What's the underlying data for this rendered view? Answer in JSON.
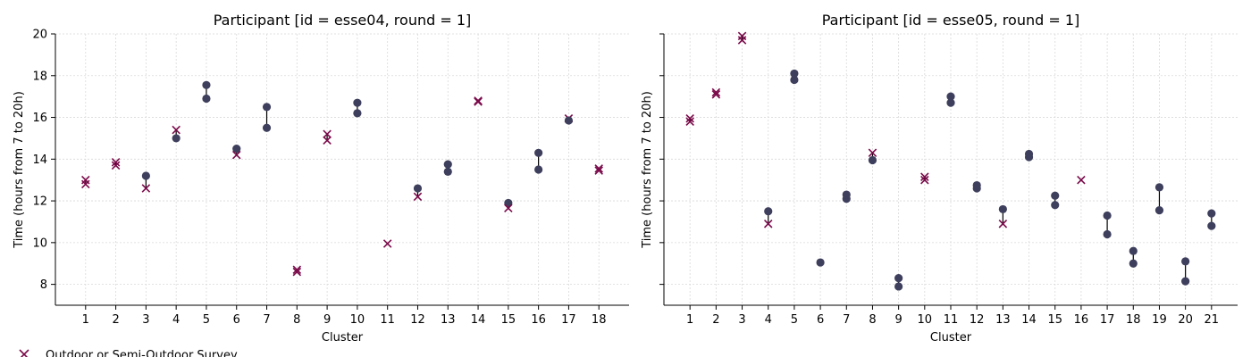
{
  "colors": {
    "survey_marker": "#7a0a4a",
    "measured_marker": "#3d3f5c",
    "connector": "#000000",
    "grid": "#d9d9d9",
    "axis": "#000000"
  },
  "legend": {
    "items": [
      {
        "marker": "x",
        "label": "Outdoor or Semi-Outdoor Survey"
      }
    ]
  },
  "chart_data": [
    {
      "type": "scatter",
      "title": "Participant [id = esse04, round = 1]",
      "xlabel": "Cluster",
      "ylabel": "Time (hours from 7 to 20h)",
      "ylim": [
        7,
        20
      ],
      "yticks": [
        8,
        10,
        12,
        14,
        16,
        18,
        20
      ],
      "categories": [
        "1",
        "2",
        "3",
        "4",
        "5",
        "6",
        "7",
        "8",
        "9",
        "10",
        "11",
        "12",
        "13",
        "14",
        "15",
        "16",
        "17",
        "18"
      ],
      "grid": true,
      "points": [
        {
          "cluster": "1",
          "marker": "x",
          "values": [
            12.8,
            13.0
          ]
        },
        {
          "cluster": "2",
          "marker": "x",
          "values": [
            13.7,
            13.85
          ]
        },
        {
          "cluster": "3",
          "marker": "dot",
          "values": [
            13.2
          ]
        },
        {
          "cluster": "3",
          "marker": "x",
          "values": [
            12.6
          ]
        },
        {
          "cluster": "4",
          "marker": "x",
          "values": [
            15.4
          ]
        },
        {
          "cluster": "4",
          "marker": "dot",
          "values": [
            15.0
          ]
        },
        {
          "cluster": "5",
          "marker": "dot",
          "values": [
            16.9,
            17.55
          ]
        },
        {
          "cluster": "6",
          "marker": "dot",
          "values": [
            14.5
          ]
        },
        {
          "cluster": "6",
          "marker": "x",
          "values": [
            14.2
          ]
        },
        {
          "cluster": "7",
          "marker": "dot",
          "values": [
            15.5,
            16.5
          ]
        },
        {
          "cluster": "8",
          "marker": "x",
          "values": [
            8.6,
            8.7
          ]
        },
        {
          "cluster": "9",
          "marker": "x",
          "values": [
            14.9,
            15.2
          ]
        },
        {
          "cluster": "10",
          "marker": "dot",
          "values": [
            16.2,
            16.7
          ]
        },
        {
          "cluster": "11",
          "marker": "x",
          "values": [
            9.95
          ]
        },
        {
          "cluster": "12",
          "marker": "dot",
          "values": [
            12.6
          ]
        },
        {
          "cluster": "12",
          "marker": "x",
          "values": [
            12.2
          ]
        },
        {
          "cluster": "13",
          "marker": "dot",
          "values": [
            13.4,
            13.75
          ]
        },
        {
          "cluster": "14",
          "marker": "x",
          "values": [
            16.75,
            16.8
          ]
        },
        {
          "cluster": "15",
          "marker": "dot",
          "values": [
            11.9
          ]
        },
        {
          "cluster": "15",
          "marker": "x",
          "values": [
            11.65
          ]
        },
        {
          "cluster": "16",
          "marker": "dot",
          "values": [
            13.5,
            14.3
          ]
        },
        {
          "cluster": "17",
          "marker": "x",
          "values": [
            15.95
          ]
        },
        {
          "cluster": "17",
          "marker": "dot",
          "values": [
            15.85
          ]
        },
        {
          "cluster": "18",
          "marker": "x",
          "values": [
            13.45,
            13.55
          ]
        }
      ]
    },
    {
      "type": "scatter",
      "title": "Participant [id = esse05, round = 1]",
      "xlabel": "Cluster",
      "ylabel": "Time (hours from 7 to 20h)",
      "ylim": [
        7,
        20
      ],
      "yticks": [
        8,
        10,
        12,
        14,
        16,
        18,
        20
      ],
      "categories": [
        "1",
        "2",
        "3",
        "4",
        "5",
        "6",
        "7",
        "8",
        "9",
        "10",
        "11",
        "12",
        "13",
        "14",
        "15",
        "16",
        "17",
        "18",
        "19",
        "20",
        "21"
      ],
      "grid": true,
      "points": [
        {
          "cluster": "1",
          "marker": "x",
          "values": [
            15.8,
            15.95
          ]
        },
        {
          "cluster": "2",
          "marker": "x",
          "values": [
            17.1,
            17.2
          ]
        },
        {
          "cluster": "3",
          "marker": "x",
          "values": [
            19.7,
            19.9
          ]
        },
        {
          "cluster": "4",
          "marker": "dot",
          "values": [
            11.5
          ]
        },
        {
          "cluster": "4",
          "marker": "x",
          "values": [
            10.9
          ]
        },
        {
          "cluster": "5",
          "marker": "dot",
          "values": [
            17.8,
            18.1
          ]
        },
        {
          "cluster": "6",
          "marker": "dot",
          "values": [
            9.05
          ]
        },
        {
          "cluster": "7",
          "marker": "dot",
          "values": [
            12.1,
            12.3
          ]
        },
        {
          "cluster": "8",
          "marker": "x",
          "values": [
            14.3
          ]
        },
        {
          "cluster": "8",
          "marker": "dot",
          "values": [
            13.95
          ]
        },
        {
          "cluster": "9",
          "marker": "dot",
          "values": [
            7.9,
            8.3
          ]
        },
        {
          "cluster": "10",
          "marker": "x",
          "values": [
            13.0,
            13.15
          ]
        },
        {
          "cluster": "11",
          "marker": "dot",
          "values": [
            16.7,
            17.0
          ]
        },
        {
          "cluster": "12",
          "marker": "dot",
          "values": [
            12.6,
            12.75
          ]
        },
        {
          "cluster": "13",
          "marker": "dot",
          "values": [
            11.6
          ]
        },
        {
          "cluster": "13",
          "marker": "x",
          "values": [
            10.9
          ]
        },
        {
          "cluster": "14",
          "marker": "dot",
          "values": [
            14.1,
            14.25
          ]
        },
        {
          "cluster": "15",
          "marker": "dot",
          "values": [
            11.8,
            12.25
          ]
        },
        {
          "cluster": "16",
          "marker": "x",
          "values": [
            13.0
          ]
        },
        {
          "cluster": "17",
          "marker": "dot",
          "values": [
            10.4,
            11.3
          ]
        },
        {
          "cluster": "18",
          "marker": "dot",
          "values": [
            9.0,
            9.6
          ]
        },
        {
          "cluster": "19",
          "marker": "dot",
          "values": [
            11.55,
            12.65
          ]
        },
        {
          "cluster": "20",
          "marker": "dot",
          "values": [
            8.15,
            9.1
          ]
        },
        {
          "cluster": "21",
          "marker": "dot",
          "values": [
            10.8,
            11.4
          ]
        }
      ]
    }
  ]
}
